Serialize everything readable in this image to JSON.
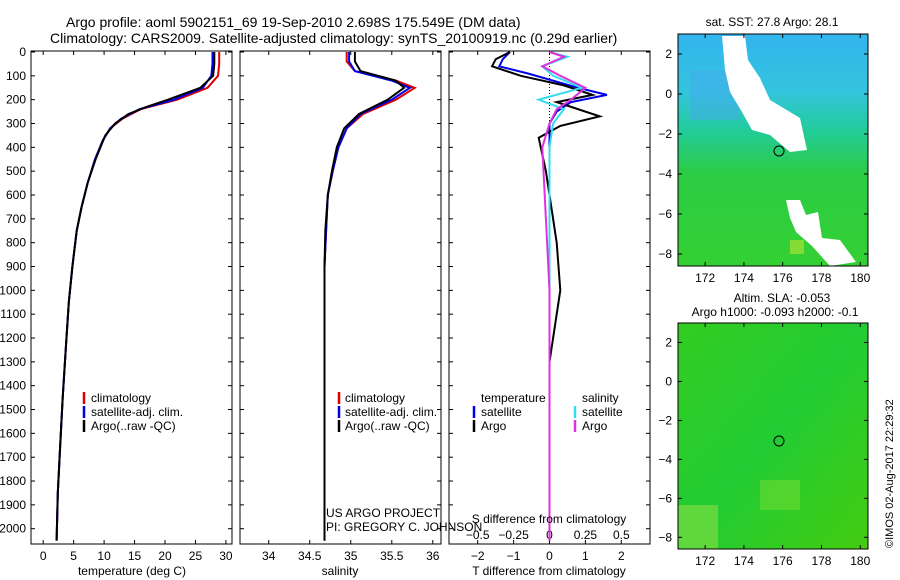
{
  "header": {
    "line1": "Argo profile: aoml 5902151_69 19-Sep-2010 2.698S 175.549E (DM data)",
    "line2": "Climatology: CARS2009. Satellite-adjusted climatology: synTS_20100919.nc (0.29d earlier)"
  },
  "side_stamp": "©IMOS 02-Aug-2017 22:29:32",
  "project": {
    "line1": "US ARGO PROJECT",
    "line2": "PI: GREGORY C. JOHNSON"
  },
  "depth_ticks": [
    0,
    100,
    200,
    300,
    400,
    500,
    600,
    700,
    800,
    900,
    1000,
    1100,
    1200,
    1300,
    1400,
    1500,
    1600,
    1700,
    1800,
    1900,
    2000
  ],
  "legends": {
    "ts": [
      "climatology",
      "satellite-adj. clim.",
      "Argo(..raw -QC)"
    ],
    "diff_headers": [
      "temperature",
      "salinity"
    ],
    "diff_items": [
      "satellite",
      "Argo",
      "satellite",
      "Argo"
    ]
  },
  "map_sst": {
    "title": "sat. SST: 27.8 Argo: 28.1",
    "xticks": [
      "172",
      "174",
      "176",
      "178",
      "180"
    ],
    "yticks": [
      "2",
      "0",
      "-2",
      "-4",
      "-6",
      "-8"
    ]
  },
  "map_sla": {
    "title1": "Altim. SLA: -0.053",
    "title2": "Argo h1000: -0.093 h2000: -0.1",
    "xticks": [
      "172",
      "174",
      "176",
      "178",
      "180"
    ],
    "yticks": [
      "2",
      "0",
      "-2",
      "-4",
      "-6",
      "-8"
    ]
  },
  "colors": {
    "climatology": "#e00000",
    "satellite": "#0000e8",
    "argo": "#000000",
    "sal_satellite": "#33ddee",
    "sal_argo": "#dd33dd"
  },
  "chart_data": [
    {
      "type": "line",
      "xlabel": "temperature (deg C)",
      "ylabel": "",
      "xlim": [
        -2,
        31
      ],
      "ylim": [
        2060,
        0
      ],
      "xticks": [
        0,
        5,
        10,
        15,
        20,
        25,
        30
      ],
      "series": [
        {
          "name": "climatology",
          "x": [
            28.9,
            28.9,
            28.7,
            27.0,
            22.0,
            16.0,
            13.0,
            11.0,
            9.8,
            8.5,
            7.3,
            6.3,
            5.5,
            4.8,
            4.2,
            3.7,
            3.2,
            2.8,
            2.4,
            2.2
          ],
          "y": [
            0,
            50,
            100,
            150,
            200,
            240,
            280,
            320,
            370,
            450,
            550,
            650,
            750,
            900,
            1050,
            1250,
            1450,
            1650,
            1850,
            2050
          ]
        },
        {
          "name": "satellite-adj. clim.",
          "x": [
            27.8,
            27.8,
            27.6,
            26.2,
            21.5,
            15.8,
            12.8,
            11.0,
            9.8,
            8.5,
            7.3,
            6.3,
            5.5,
            4.8,
            4.2,
            3.7,
            3.2,
            2.8,
            2.4,
            2.2
          ],
          "y": [
            0,
            50,
            100,
            150,
            200,
            240,
            280,
            320,
            370,
            450,
            550,
            650,
            750,
            900,
            1050,
            1250,
            1450,
            1650,
            1850,
            2050
          ]
        },
        {
          "name": "Argo(..raw -QC)",
          "x": [
            28.1,
            28.1,
            27.9,
            25.8,
            20.5,
            17.0,
            14.0,
            11.8,
            10.2,
            8.6,
            7.3,
            6.3,
            5.5,
            4.8,
            4.2,
            3.7,
            3.2,
            2.8,
            2.4,
            2.2
          ],
          "y": [
            0,
            50,
            100,
            150,
            200,
            230,
            260,
            300,
            350,
            450,
            550,
            650,
            750,
            900,
            1050,
            1250,
            1450,
            1650,
            1850,
            2050
          ]
        }
      ]
    },
    {
      "type": "line",
      "xlabel": "salinity",
      "ylabel": "",
      "xlim": [
        33.65,
        36.1
      ],
      "ylim": [
        2060,
        0
      ],
      "xticks": [
        34,
        34.5,
        35,
        35.5,
        36
      ],
      "series": [
        {
          "name": "climatology",
          "x": [
            34.95,
            34.95,
            35.05,
            35.55,
            35.78,
            35.55,
            35.15,
            34.95,
            34.85,
            34.78,
            34.72,
            34.7,
            34.68,
            34.68,
            34.68,
            34.68,
            34.68
          ],
          "y": [
            0,
            40,
            80,
            120,
            150,
            200,
            260,
            320,
            400,
            500,
            600,
            750,
            900,
            1100,
            1400,
            1700,
            2050
          ]
        },
        {
          "name": "satellite-adj. clim.",
          "x": [
            34.98,
            34.98,
            35.05,
            35.5,
            35.72,
            35.5,
            35.12,
            34.95,
            34.85,
            34.78,
            34.72,
            34.7,
            34.68,
            34.68,
            34.68,
            34.68,
            34.68
          ],
          "y": [
            0,
            40,
            80,
            120,
            150,
            200,
            260,
            320,
            400,
            500,
            600,
            750,
            900,
            1100,
            1400,
            1700,
            2050
          ]
        },
        {
          "name": "Argo(..raw -QC)",
          "x": [
            35.05,
            35.05,
            35.12,
            35.55,
            35.65,
            35.45,
            35.1,
            34.92,
            34.83,
            34.77,
            34.72,
            34.69,
            34.68,
            34.68,
            34.68,
            34.68,
            34.68
          ],
          "y": [
            0,
            40,
            80,
            120,
            150,
            200,
            260,
            320,
            400,
            500,
            600,
            750,
            900,
            1100,
            1400,
            1700,
            2050
          ]
        }
      ]
    },
    {
      "type": "line",
      "xlabel": "T difference from climatology",
      "xlabel2": "S difference from climatology",
      "xlim": [
        -2.8,
        2.8
      ],
      "ylim": [
        2060,
        0
      ],
      "xticks": [
        -2,
        -1,
        0,
        1,
        2
      ],
      "xticks2": [
        "-0.5",
        "-0.25",
        "0",
        "0.25",
        "0.5"
      ],
      "series": [
        {
          "name": "temperature satellite",
          "x": [
            -1.1,
            -1.3,
            -1.4,
            -0.6,
            0.8,
            1.6,
            0.6,
            0.2,
            0.0,
            0.0,
            0.0,
            0.0
          ],
          "y": [
            0,
            30,
            60,
            90,
            150,
            180,
            210,
            250,
            300,
            400,
            1000,
            2050
          ]
        },
        {
          "name": "temperature Argo",
          "x": [
            -1.1,
            -1.5,
            -1.6,
            -0.8,
            0.4,
            1.2,
            0.2,
            1.4,
            0.3,
            -0.3,
            -0.1,
            0.2,
            0.3,
            0.0,
            0.0
          ],
          "y": [
            0,
            30,
            60,
            100,
            140,
            180,
            210,
            270,
            310,
            360,
            500,
            800,
            1000,
            1300,
            2050
          ]
        },
        {
          "name": "salinity satellite",
          "x": [
            0.0,
            0.5,
            -0.2,
            0.1,
            0.9,
            -0.3,
            0.4,
            0.1,
            0.0,
            0.0,
            0.0,
            0.0
          ],
          "y": [
            0,
            20,
            60,
            100,
            150,
            200,
            240,
            300,
            400,
            700,
            1000,
            2050
          ]
        },
        {
          "name": "salinity Argo",
          "x": [
            0.0,
            0.4,
            -0.2,
            0.3,
            1.0,
            0.6,
            0.2,
            0.0,
            -0.2,
            -0.1,
            0.0,
            0.0
          ],
          "y": [
            0,
            20,
            60,
            100,
            150,
            200,
            240,
            300,
            400,
            700,
            1000,
            2050
          ]
        }
      ]
    }
  ]
}
